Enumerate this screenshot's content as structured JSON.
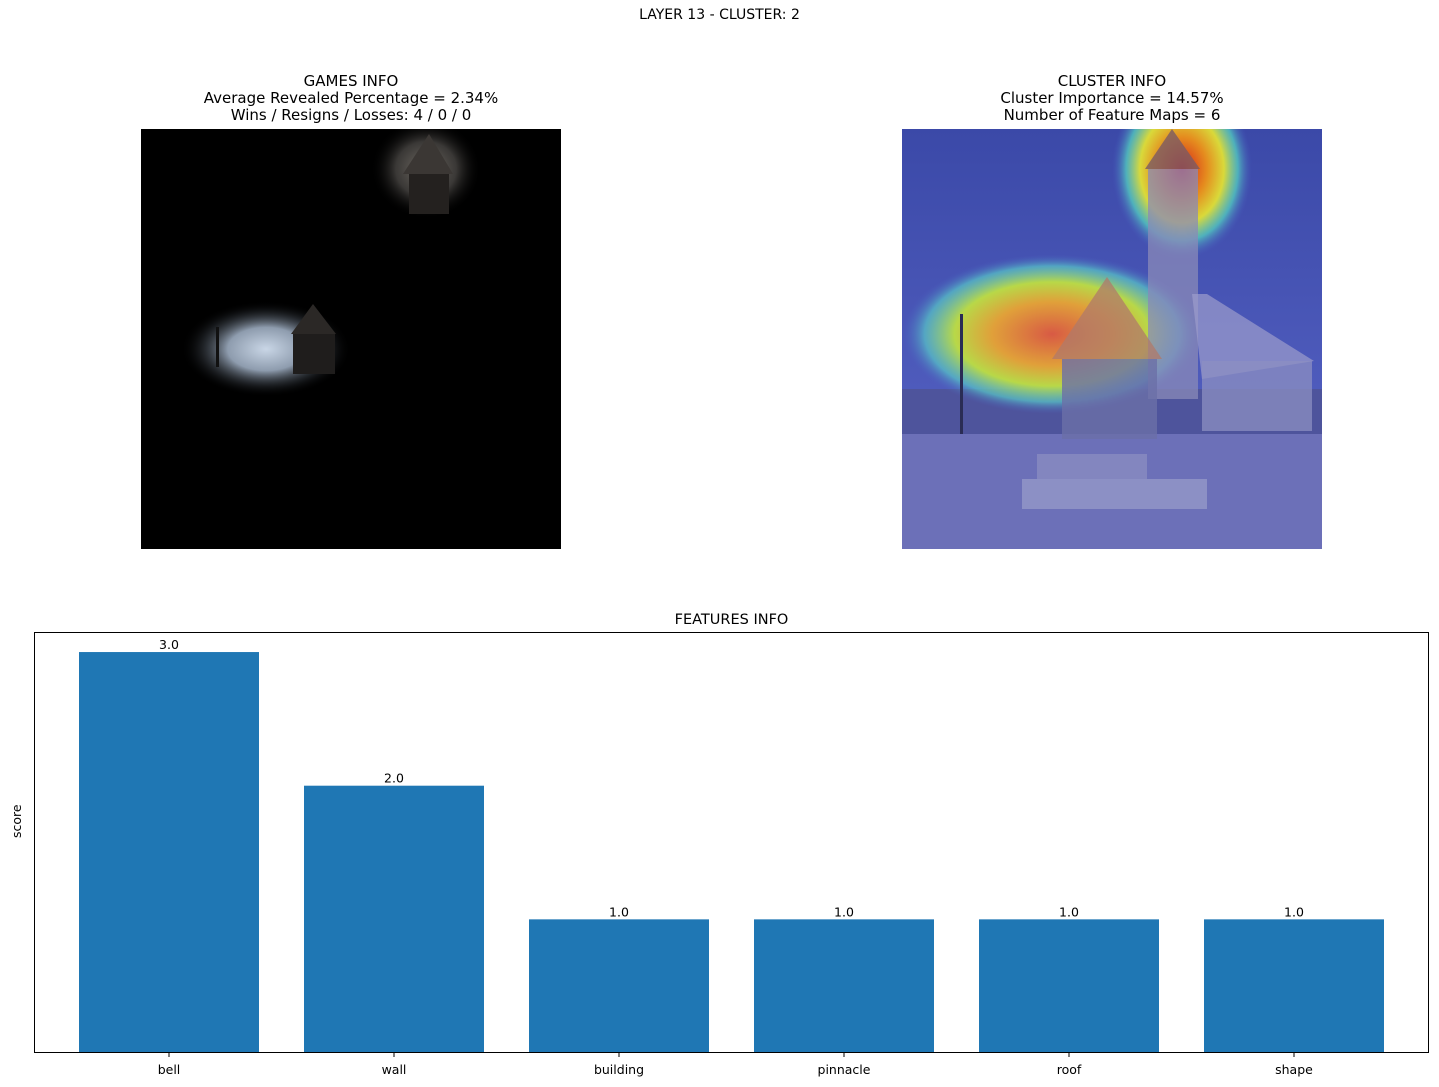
{
  "figure": {
    "suptitle": "LAYER 13 - CLUSTER: 2"
  },
  "games_info": {
    "title": "GAMES INFO",
    "line1": "Average Revealed Percentage = 2.34%",
    "line2": "Wins / Resigns / Losses: 4 / 0 / 0"
  },
  "cluster_info": {
    "title": "CLUSTER INFO",
    "line1": "Cluster Importance = 14.57%",
    "line2": "Number of Feature Maps = 6"
  },
  "colors": {
    "bar": "#1f77b4",
    "axis": "#000000"
  },
  "chart_data": {
    "type": "bar",
    "title": "FEATURES INFO",
    "xlabel": "",
    "ylabel": "score",
    "categories": [
      "bell",
      "wall",
      "building",
      "pinnacle",
      "roof",
      "shape"
    ],
    "values": [
      3.0,
      2.0,
      1.0,
      1.0,
      1.0,
      1.0
    ],
    "data_labels": [
      "3.0",
      "2.0",
      "1.0",
      "1.0",
      "1.0",
      "1.0"
    ],
    "ylim": [
      0,
      3.15
    ],
    "y_ticks_visible": false,
    "grid": false
  }
}
